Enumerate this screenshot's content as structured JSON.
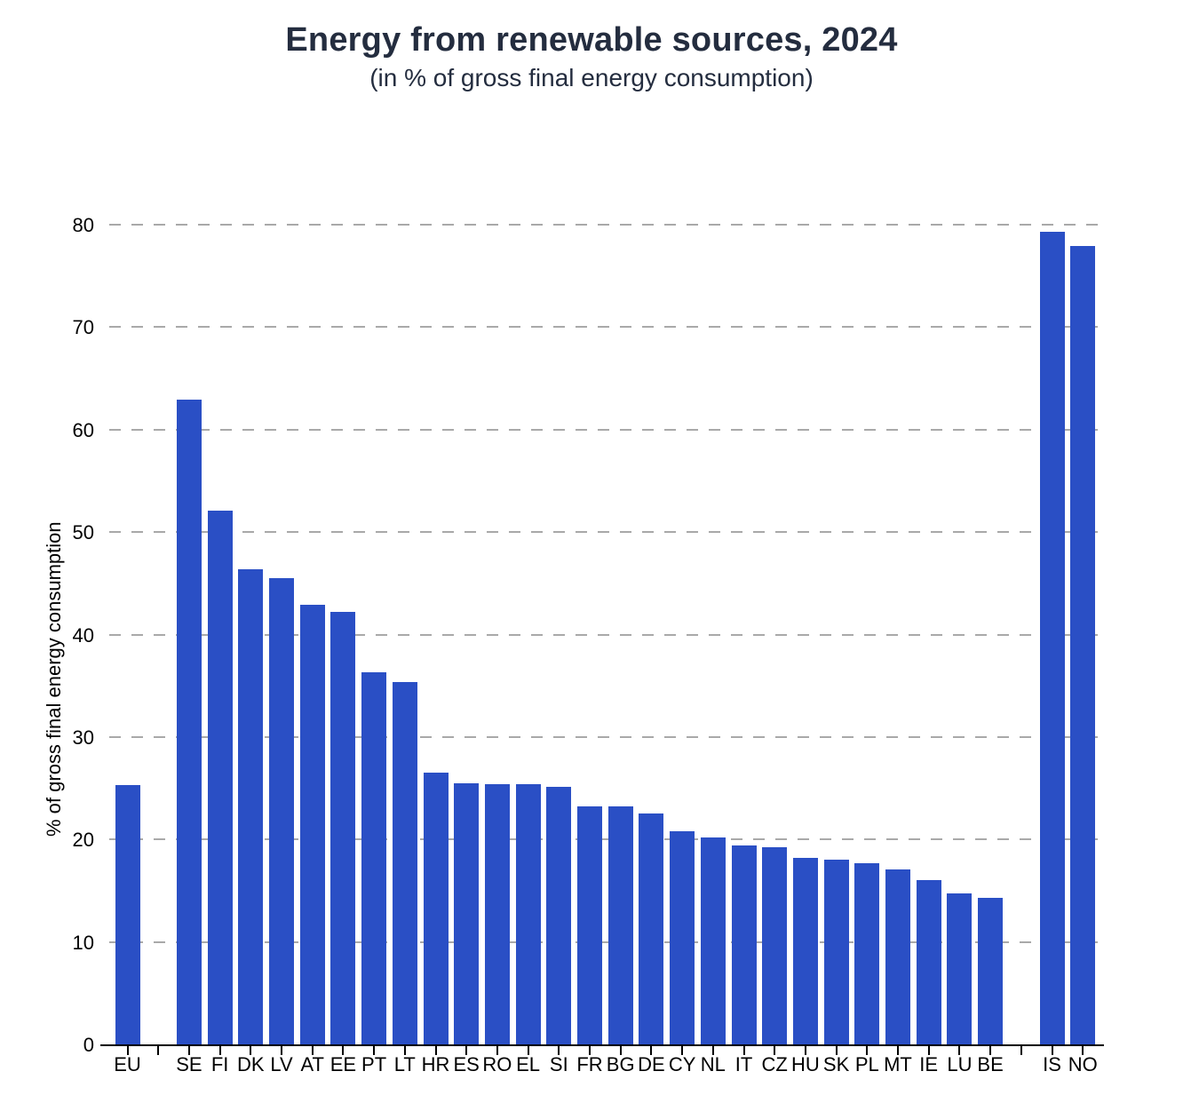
{
  "page": {
    "title": "Energy from renewable sources, 2024",
    "subtitle": "(in % of gross final energy consumption)"
  },
  "chart_data": {
    "type": "bar",
    "title": "Energy from renewable sources, 2024",
    "subtitle": "(in % of gross final energy consumption)",
    "xlabel": "",
    "ylabel": "% of gross final energy consumption",
    "ylim": [
      0,
      80
    ],
    "yticks": [
      0,
      10,
      20,
      30,
      40,
      50,
      60,
      70,
      80
    ],
    "grid": "horizontal dashed",
    "legend": "none",
    "categories": [
      "EU",
      "SE",
      "FI",
      "DK",
      "LV",
      "AT",
      "EE",
      "PT",
      "LT",
      "HR",
      "ES",
      "RO",
      "EL",
      "SI",
      "FR",
      "BG",
      "DE",
      "CY",
      "NL",
      "IT",
      "CZ",
      "HU",
      "SK",
      "PL",
      "MT",
      "IE",
      "LU",
      "BE",
      "IS",
      "NO"
    ],
    "values": [
      25.3,
      62.9,
      52.1,
      46.4,
      45.5,
      42.9,
      42.2,
      36.3,
      35.4,
      26.5,
      25.5,
      25.4,
      25.4,
      25.1,
      23.2,
      23.2,
      22.5,
      20.8,
      20.2,
      19.4,
      19.2,
      18.2,
      18.0,
      17.7,
      17.1,
      16.0,
      14.7,
      14.3,
      79.3,
      77.9
    ],
    "slots": [
      "EU",
      null,
      "SE",
      "FI",
      "DK",
      "LV",
      "AT",
      "EE",
      "PT",
      "LT",
      "HR",
      "ES",
      "RO",
      "EL",
      "SI",
      "FR",
      "BG",
      "DE",
      "CY",
      "NL",
      "IT",
      "CZ",
      "HU",
      "SK",
      "PL",
      "MT",
      "IE",
      "LU",
      "BE",
      null,
      "IS",
      "NO"
    ],
    "colors": {
      "bar": "#2a4fc5",
      "text": "#242d3f",
      "axis": "#000000",
      "grid": "#a9a9a9",
      "background": "#ffffff"
    }
  }
}
